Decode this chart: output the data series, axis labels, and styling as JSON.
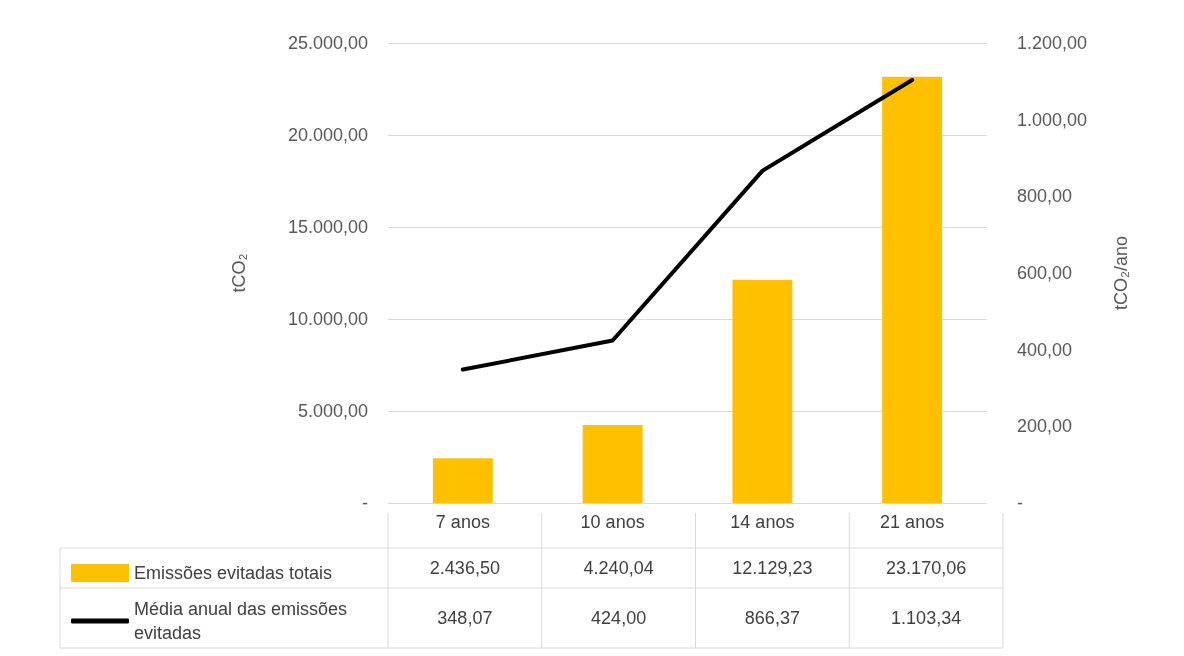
{
  "chart_data": {
    "type": "bar",
    "categories": [
      "7 anos",
      "10 anos",
      "14 anos",
      "21 anos"
    ],
    "ylabel": "tCO₂",
    "y2label": "tCO₂/ano",
    "ylim": [
      0,
      25000
    ],
    "yticks": [
      {
        "value": 0,
        "label": "-"
      },
      {
        "value": 5000,
        "label": "5.000,00"
      },
      {
        "value": 10000,
        "label": "10.000,00"
      },
      {
        "value": 15000,
        "label": "15.000,00"
      },
      {
        "value": 20000,
        "label": "20.000,00"
      },
      {
        "value": 25000,
        "label": "25.000,00"
      }
    ],
    "y2lim": [
      0,
      1200
    ],
    "y2ticks": [
      {
        "value": 0,
        "label": "-"
      },
      {
        "value": 200,
        "label": "200,00"
      },
      {
        "value": 400,
        "label": "400,00"
      },
      {
        "value": 600,
        "label": "600,00"
      },
      {
        "value": 800,
        "label": "800,00"
      },
      {
        "value": 1000,
        "label": "1.000,00"
      },
      {
        "value": 1200,
        "label": "1.200,00"
      }
    ],
    "grid": "y",
    "legend": "bottom left",
    "series": [
      {
        "name": "Emissões evitadas totais",
        "color": "#ffc000",
        "values": [
          2436.5,
          4240.04,
          12129.23,
          23170.06
        ],
        "value_labels": [
          "2.436,50",
          "4.240,04",
          "12.129,23",
          "23.170,06"
        ]
      },
      {
        "name": "Média anual das emissões evitadas",
        "type": "line",
        "axis": "y2",
        "color": "#000000",
        "values": [
          348.07,
          424.0,
          866.37,
          1103.34
        ],
        "value_labels": [
          "348,07",
          "424,00",
          "866,37",
          "1.103,34"
        ]
      }
    ]
  }
}
